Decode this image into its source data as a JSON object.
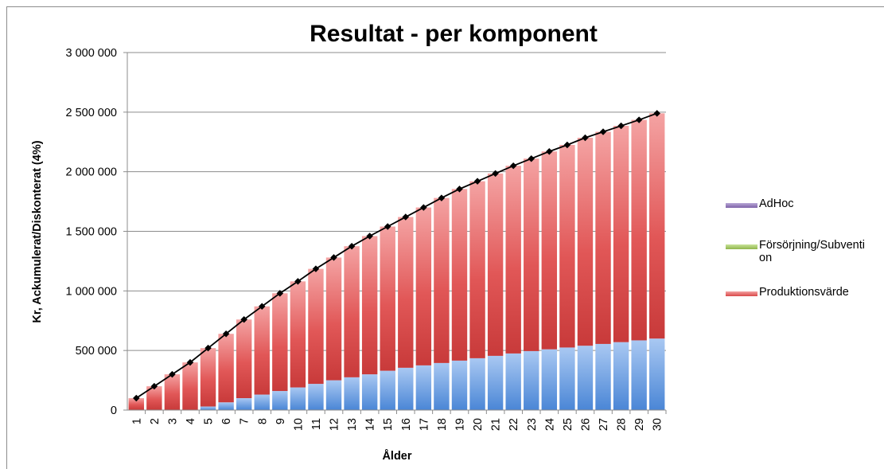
{
  "chart_data": {
    "type": "bar",
    "stacked": true,
    "title": "Resultat - per komponent",
    "xlabel": "Ålder",
    "ylabel": "Kr, Ackumulerat/Diskonterat (4%)",
    "ylim": [
      0,
      3000000
    ],
    "yticks": [
      0,
      500000,
      1000000,
      1500000,
      2000000,
      2500000,
      3000000
    ],
    "ytick_labels": [
      "0",
      "500 000",
      "1 000 000",
      "1 500 000",
      "2 000 000",
      "2 500 000",
      "3 000 000"
    ],
    "grid": true,
    "legend_position": "right",
    "categories": [
      "1",
      "2",
      "3",
      "4",
      "5",
      "6",
      "7",
      "8",
      "9",
      "10",
      "11",
      "12",
      "13",
      "14",
      "15",
      "16",
      "17",
      "18",
      "19",
      "20",
      "21",
      "22",
      "23",
      "24",
      "25",
      "26",
      "27",
      "28",
      "29",
      "30"
    ],
    "series": [
      {
        "color": "#5b9bd5",
        "values": [
          0,
          0,
          0,
          0,
          30000,
          65000,
          100000,
          130000,
          160000,
          190000,
          220000,
          250000,
          275000,
          300000,
          330000,
          355000,
          375000,
          395000,
          415000,
          435000,
          455000,
          475000,
          495000,
          510000,
          525000,
          540000,
          555000,
          570000,
          585000,
          600000
        ]
      },
      {
        "name": "AdHoc",
        "color": "#8064a2",
        "values": [
          0,
          0,
          0,
          0,
          0,
          0,
          0,
          0,
          0,
          0,
          0,
          0,
          0,
          0,
          0,
          0,
          0,
          0,
          0,
          0,
          0,
          0,
          0,
          0,
          0,
          0,
          0,
          0,
          0,
          0
        ]
      },
      {
        "name": "Försörjning/Subvention",
        "color": "#9bbb59",
        "values": [
          0,
          0,
          0,
          0,
          0,
          0,
          0,
          0,
          0,
          0,
          0,
          0,
          0,
          0,
          0,
          0,
          0,
          0,
          0,
          0,
          0,
          0,
          0,
          0,
          0,
          0,
          0,
          0,
          0,
          0
        ]
      },
      {
        "name": "Produktionsvärde",
        "color": "#e05555",
        "values": [
          100000,
          200000,
          300000,
          400000,
          490000,
          575000,
          660000,
          740000,
          820000,
          890000,
          965000,
          1030000,
          1100000,
          1160000,
          1210000,
          1265000,
          1325000,
          1385000,
          1440000,
          1485000,
          1530000,
          1575000,
          1615000,
          1660000,
          1700000,
          1745000,
          1780000,
          1815000,
          1850000,
          1890000
        ]
      }
    ],
    "total_line": {
      "color": "#000000",
      "values": [
        100000,
        200000,
        300000,
        400000,
        520000,
        640000,
        760000,
        870000,
        980000,
        1080000,
        1185000,
        1280000,
        1375000,
        1460000,
        1540000,
        1620000,
        1700000,
        1780000,
        1855000,
        1920000,
        1985000,
        2050000,
        2110000,
        2170000,
        2225000,
        2285000,
        2335000,
        2385000,
        2435000,
        2490000
      ]
    },
    "legend": [
      {
        "label": "AdHoc",
        "color": "#8064a2"
      },
      {
        "label": "Försörjning/Subventi on",
        "color": "#9bbb59"
      },
      {
        "label": "Produktionsvärde",
        "color": "#e05555"
      }
    ]
  }
}
